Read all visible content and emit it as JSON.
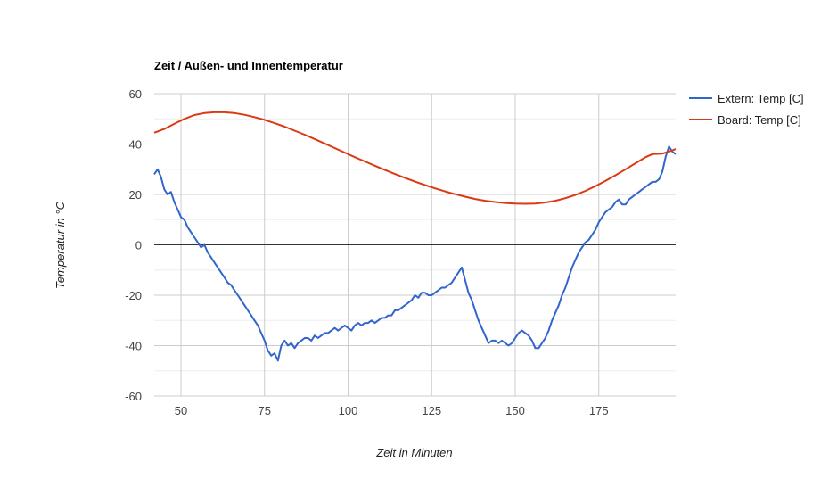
{
  "chart_data": {
    "type": "line",
    "title": "Zeit / Außen- und Innentemperatur",
    "xlabel": "Zeit in Minuten",
    "ylabel": "Temperatur in °C",
    "xlim": [
      42,
      198
    ],
    "ylim": [
      -60,
      60
    ],
    "x_ticks": [
      50,
      75,
      100,
      125,
      150,
      175
    ],
    "y_ticks": [
      -60,
      -40,
      -20,
      0,
      20,
      40,
      60
    ],
    "grid": true,
    "legend_position": "top-right",
    "series": [
      {
        "name": "Extern: Temp [C]",
        "color": "#3366cc",
        "points": [
          [
            42,
            28
          ],
          [
            43,
            30
          ],
          [
            44,
            27
          ],
          [
            45,
            22
          ],
          [
            46,
            20
          ],
          [
            47,
            21
          ],
          [
            48,
            17
          ],
          [
            49,
            14
          ],
          [
            50,
            11
          ],
          [
            51,
            10
          ],
          [
            52,
            7
          ],
          [
            53,
            5
          ],
          [
            54,
            3
          ],
          [
            55,
            1
          ],
          [
            56,
            -1
          ],
          [
            57,
            0
          ],
          [
            58,
            -3
          ],
          [
            59,
            -5
          ],
          [
            60,
            -7
          ],
          [
            61,
            -9
          ],
          [
            62,
            -11
          ],
          [
            63,
            -13
          ],
          [
            64,
            -15
          ],
          [
            65,
            -16
          ],
          [
            66,
            -18
          ],
          [
            67,
            -20
          ],
          [
            68,
            -22
          ],
          [
            69,
            -24
          ],
          [
            70,
            -26
          ],
          [
            71,
            -28
          ],
          [
            72,
            -30
          ],
          [
            73,
            -32
          ],
          [
            74,
            -35
          ],
          [
            75,
            -38
          ],
          [
            76,
            -42
          ],
          [
            77,
            -44
          ],
          [
            78,
            -43
          ],
          [
            79,
            -46
          ],
          [
            80,
            -40
          ],
          [
            81,
            -38
          ],
          [
            82,
            -40
          ],
          [
            83,
            -39
          ],
          [
            84,
            -41
          ],
          [
            85,
            -39
          ],
          [
            86,
            -38
          ],
          [
            87,
            -37
          ],
          [
            88,
            -37
          ],
          [
            89,
            -38
          ],
          [
            90,
            -36
          ],
          [
            91,
            -37
          ],
          [
            92,
            -36
          ],
          [
            93,
            -35
          ],
          [
            94,
            -35
          ],
          [
            95,
            -34
          ],
          [
            96,
            -33
          ],
          [
            97,
            -34
          ],
          [
            98,
            -33
          ],
          [
            99,
            -32
          ],
          [
            100,
            -33
          ],
          [
            101,
            -34
          ],
          [
            102,
            -32
          ],
          [
            103,
            -31
          ],
          [
            104,
            -32
          ],
          [
            105,
            -31
          ],
          [
            106,
            -31
          ],
          [
            107,
            -30
          ],
          [
            108,
            -31
          ],
          [
            109,
            -30
          ],
          [
            110,
            -29
          ],
          [
            111,
            -29
          ],
          [
            112,
            -28
          ],
          [
            113,
            -28
          ],
          [
            114,
            -26
          ],
          [
            115,
            -26
          ],
          [
            116,
            -25
          ],
          [
            117,
            -24
          ],
          [
            118,
            -23
          ],
          [
            119,
            -22
          ],
          [
            120,
            -20
          ],
          [
            121,
            -21
          ],
          [
            122,
            -19
          ],
          [
            123,
            -19
          ],
          [
            124,
            -20
          ],
          [
            125,
            -20
          ],
          [
            126,
            -19
          ],
          [
            127,
            -18
          ],
          [
            128,
            -17
          ],
          [
            129,
            -17
          ],
          [
            130,
            -16
          ],
          [
            131,
            -15
          ],
          [
            132,
            -13
          ],
          [
            133,
            -11
          ],
          [
            134,
            -9
          ],
          [
            135,
            -14
          ],
          [
            136,
            -19
          ],
          [
            137,
            -22
          ],
          [
            138,
            -26
          ],
          [
            139,
            -30
          ],
          [
            140,
            -33
          ],
          [
            141,
            -36
          ],
          [
            142,
            -39
          ],
          [
            143,
            -38
          ],
          [
            144,
            -38
          ],
          [
            145,
            -39
          ],
          [
            146,
            -38
          ],
          [
            147,
            -39
          ],
          [
            148,
            -40
          ],
          [
            149,
            -39
          ],
          [
            150,
            -37
          ],
          [
            151,
            -35
          ],
          [
            152,
            -34
          ],
          [
            153,
            -35
          ],
          [
            154,
            -36
          ],
          [
            155,
            -38
          ],
          [
            156,
            -41
          ],
          [
            157,
            -41
          ],
          [
            158,
            -39
          ],
          [
            159,
            -37
          ],
          [
            160,
            -34
          ],
          [
            161,
            -30
          ],
          [
            162,
            -27
          ],
          [
            163,
            -24
          ],
          [
            164,
            -20
          ],
          [
            165,
            -17
          ],
          [
            166,
            -13
          ],
          [
            167,
            -9
          ],
          [
            168,
            -6
          ],
          [
            169,
            -3
          ],
          [
            170,
            -1
          ],
          [
            171,
            1
          ],
          [
            172,
            2
          ],
          [
            173,
            4
          ],
          [
            174,
            6
          ],
          [
            175,
            9
          ],
          [
            176,
            11
          ],
          [
            177,
            13
          ],
          [
            178,
            14
          ],
          [
            179,
            15
          ],
          [
            180,
            17
          ],
          [
            181,
            18
          ],
          [
            182,
            16
          ],
          [
            183,
            16
          ],
          [
            184,
            18
          ],
          [
            185,
            19
          ],
          [
            186,
            20
          ],
          [
            187,
            21
          ],
          [
            188,
            22
          ],
          [
            189,
            23
          ],
          [
            190,
            24
          ],
          [
            191,
            25
          ],
          [
            192,
            25
          ],
          [
            193,
            26
          ],
          [
            194,
            29
          ],
          [
            195,
            35
          ],
          [
            196,
            39
          ],
          [
            197,
            37
          ],
          [
            198,
            36
          ]
        ]
      },
      {
        "name": "Board: Temp [C]",
        "color": "#dc3912",
        "points": [
          [
            42,
            44.5
          ],
          [
            45,
            46
          ],
          [
            48,
            48
          ],
          [
            51,
            50
          ],
          [
            54,
            51.5
          ],
          [
            57,
            52.3
          ],
          [
            60,
            52.6
          ],
          [
            63,
            52.6
          ],
          [
            66,
            52.3
          ],
          [
            69,
            51.6
          ],
          [
            72,
            50.7
          ],
          [
            75,
            49.6
          ],
          [
            78,
            48.3
          ],
          [
            81,
            46.9
          ],
          [
            84,
            45.3
          ],
          [
            87,
            43.7
          ],
          [
            90,
            42
          ],
          [
            93,
            40.2
          ],
          [
            96,
            38.4
          ],
          [
            99,
            36.6
          ],
          [
            102,
            34.8
          ],
          [
            105,
            33.1
          ],
          [
            108,
            31.4
          ],
          [
            111,
            29.7
          ],
          [
            114,
            28.1
          ],
          [
            117,
            26.6
          ],
          [
            120,
            25.1
          ],
          [
            123,
            23.7
          ],
          [
            126,
            22.4
          ],
          [
            129,
            21.2
          ],
          [
            132,
            20.1
          ],
          [
            135,
            19.1
          ],
          [
            138,
            18.2
          ],
          [
            141,
            17.5
          ],
          [
            144,
            17
          ],
          [
            147,
            16.6
          ],
          [
            150,
            16.4
          ],
          [
            153,
            16.3
          ],
          [
            156,
            16.4
          ],
          [
            159,
            16.8
          ],
          [
            162,
            17.5
          ],
          [
            165,
            18.5
          ],
          [
            168,
            19.8
          ],
          [
            171,
            21.4
          ],
          [
            174,
            23.3
          ],
          [
            177,
            25.4
          ],
          [
            180,
            27.6
          ],
          [
            183,
            30
          ],
          [
            186,
            32.4
          ],
          [
            189,
            34.8
          ],
          [
            191,
            36
          ],
          [
            194,
            36.2
          ],
          [
            196,
            37
          ],
          [
            198,
            38
          ]
        ]
      }
    ]
  }
}
